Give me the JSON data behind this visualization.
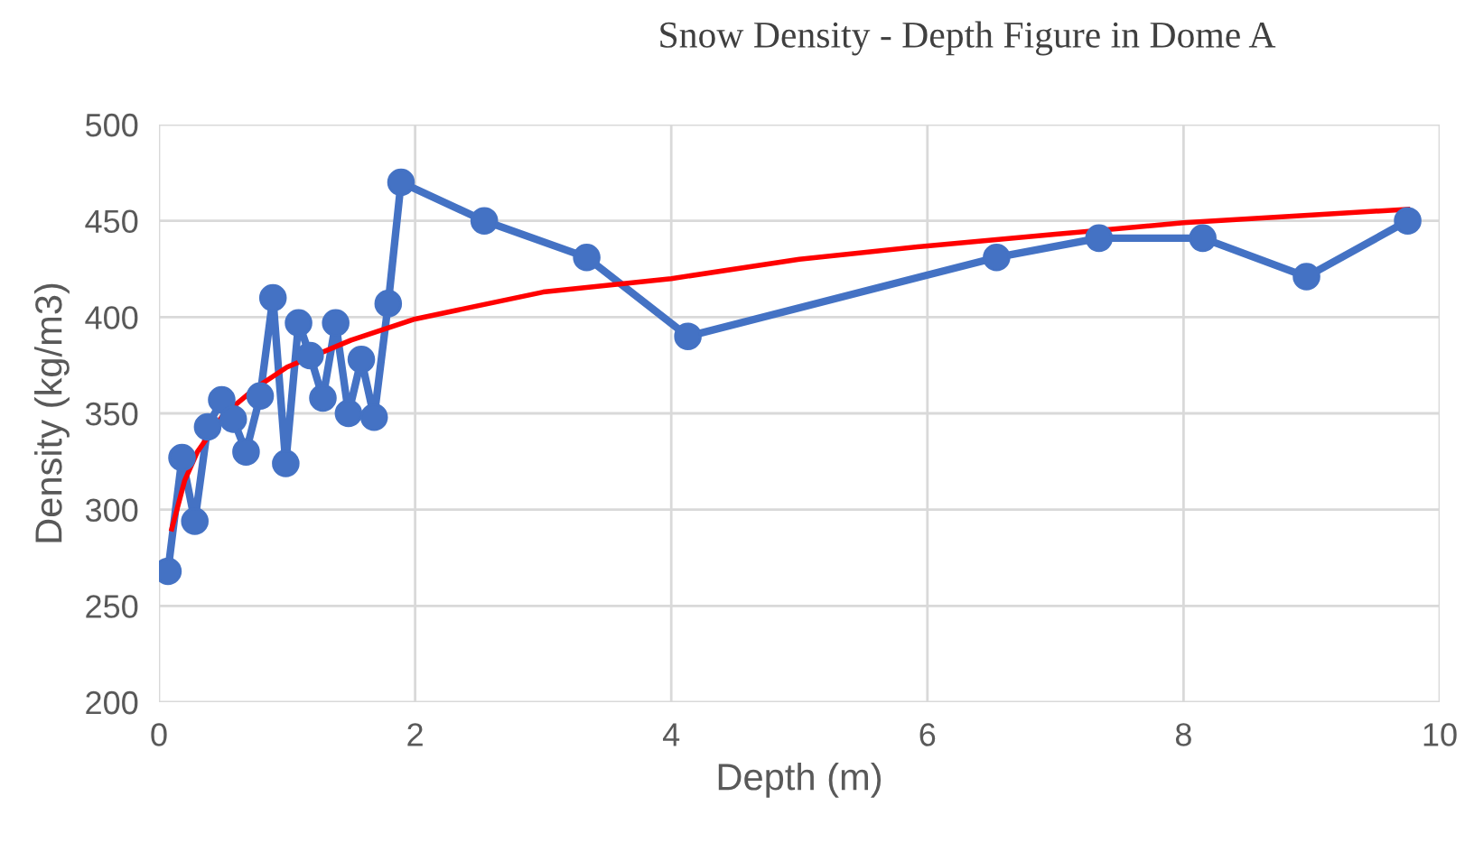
{
  "chart_data": {
    "type": "line",
    "title": "Snow Density - Depth Figure in Dome A",
    "xlabel": "Depth (m)",
    "ylabel": "Density (kg/m3)",
    "xlim": [
      0,
      10
    ],
    "xticks": [
      0,
      2,
      4,
      6,
      8,
      10
    ],
    "ylim": [
      200,
      500
    ],
    "yticks": [
      200,
      250,
      300,
      350,
      400,
      450,
      500
    ],
    "grid": true,
    "series": [
      {
        "color": "#4472c4",
        "marker": "circle",
        "x": [
          0.07,
          0.18,
          0.28,
          0.38,
          0.49,
          0.58,
          0.68,
          0.79,
          0.89,
          0.99,
          1.09,
          1.18,
          1.28,
          1.38,
          1.48,
          1.58,
          1.68,
          1.79,
          1.89,
          2.54,
          3.34,
          4.13,
          6.54,
          7.34,
          8.15,
          8.96,
          9.75
        ],
        "values": [
          268,
          327,
          294,
          343,
          357,
          347,
          330,
          359,
          410,
          324,
          397,
          380,
          358,
          397,
          350,
          378,
          348,
          407,
          470,
          450,
          431,
          390,
          431,
          441,
          441,
          421,
          450
        ]
      },
      {
        "color": "#ff0000",
        "marker": "none",
        "x": [
          0.1,
          0.2,
          0.3,
          0.5,
          0.75,
          1,
          1.5,
          2,
          3,
          4,
          5,
          6,
          7,
          8,
          9,
          9.75
        ],
        "values": [
          290,
          315,
          330,
          349,
          363,
          374,
          388,
          399,
          413,
          420,
          430,
          437,
          443,
          449,
          453,
          456
        ]
      }
    ]
  }
}
